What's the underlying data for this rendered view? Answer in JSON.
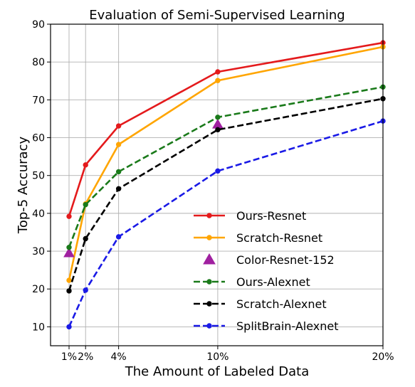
{
  "chart_data": {
    "type": "line",
    "title": "Evaluation of Semi-Supervised Learning",
    "xlabel": "The Amount of Labeled Data",
    "ylabel": "Top-5 Accuracy",
    "x_ticks": [
      1,
      2,
      4,
      10,
      20
    ],
    "x_tick_labels": [
      "1%",
      "2%",
      "4%",
      "10%",
      "20%"
    ],
    "y_ticks": [
      10,
      20,
      30,
      40,
      50,
      60,
      70,
      80,
      90
    ],
    "xlim": [
      0,
      20
    ],
    "ylim": [
      5,
      90
    ],
    "grid": true,
    "legend_position": "lower-right",
    "series": [
      {
        "name": "Ours-Resnet",
        "color": "#e41a1c",
        "style": "solid",
        "marker": "circle",
        "x": [
          1,
          2,
          4,
          10,
          20
        ],
        "y": [
          39.2,
          52.8,
          63.1,
          77.4,
          85.1
        ]
      },
      {
        "name": "Scratch-Resnet",
        "color": "#ffa500",
        "style": "solid",
        "marker": "circle",
        "x": [
          1,
          2,
          4,
          10,
          20
        ],
        "y": [
          22.3,
          42.5,
          58.2,
          75.1,
          84.0
        ]
      },
      {
        "name": "Color-Resnet-152",
        "color": "#a020a0",
        "style": "none",
        "marker": "triangle",
        "x": [
          1,
          10
        ],
        "y": [
          29.5,
          63.5
        ]
      },
      {
        "name": "Ours-Alexnet",
        "color": "#1a7a1a",
        "style": "dashed",
        "marker": "circle",
        "x": [
          1,
          2,
          4,
          10,
          20
        ],
        "y": [
          31.0,
          42.3,
          51.0,
          65.4,
          73.4
        ]
      },
      {
        "name": "Scratch-Alexnet",
        "color": "#000000",
        "style": "dashed",
        "marker": "circle",
        "x": [
          1,
          2,
          4,
          10,
          20
        ],
        "y": [
          19.5,
          33.3,
          46.5,
          62.1,
          70.3
        ]
      },
      {
        "name": "SplitBrain-Alexnet",
        "color": "#1a1ae6",
        "style": "dashed",
        "marker": "circle",
        "x": [
          1,
          2,
          4,
          10,
          20
        ],
        "y": [
          10.0,
          19.7,
          33.8,
          51.2,
          64.4
        ]
      }
    ]
  }
}
